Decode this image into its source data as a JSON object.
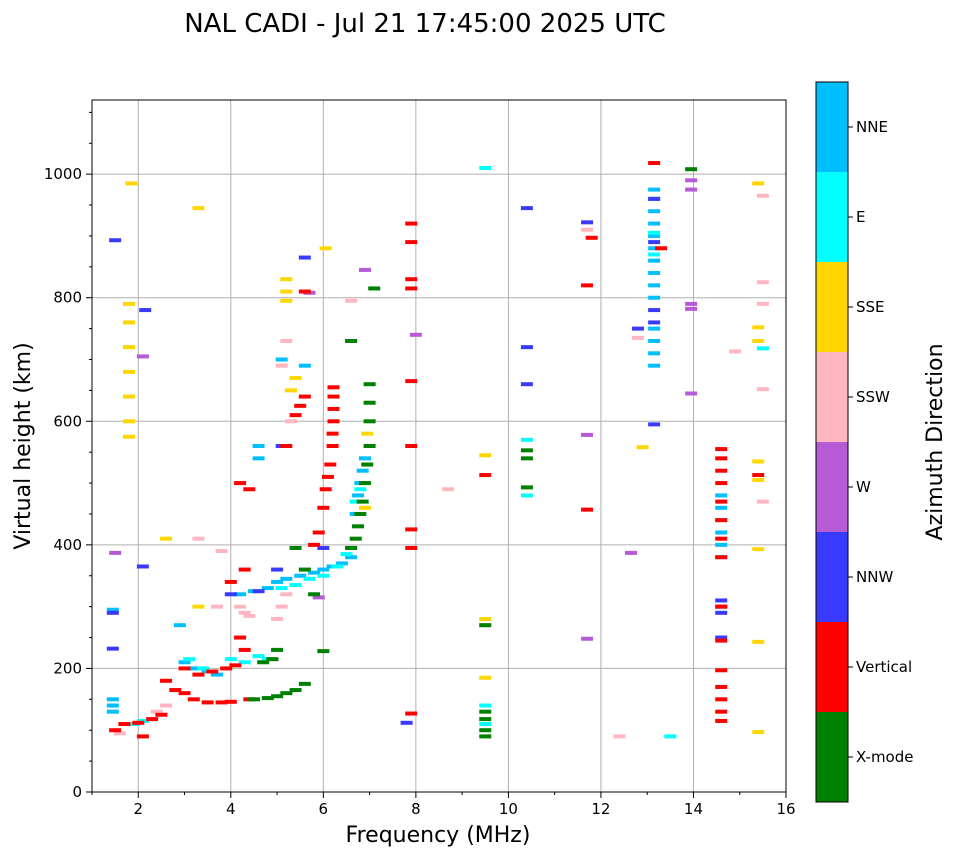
{
  "chart_data": {
    "type": "scatter",
    "title": "NAL CADI - Jul 21 17:45:00 2025 UTC",
    "xlabel": "Frequency (MHz)",
    "ylabel": "Virtual height (km)",
    "xlim": [
      1,
      16
    ],
    "ylim": [
      0,
      1120
    ],
    "xticks": [
      2,
      4,
      6,
      8,
      10,
      12,
      14,
      16
    ],
    "yticks": [
      0,
      200,
      400,
      600,
      800,
      1000
    ],
    "grid": true,
    "colorbar": {
      "label": "Azimuth Direction",
      "position": "right",
      "categories": [
        {
          "name": "X-mode",
          "color": "#008000"
        },
        {
          "name": "Vertical",
          "color": "#ff0000"
        },
        {
          "name": "NNW",
          "color": "#3a3aff"
        },
        {
          "name": "W",
          "color": "#b65ad6"
        },
        {
          "name": "SSW",
          "color": "#ffb6c1"
        },
        {
          "name": "SSE",
          "color": "#ffd700"
        },
        {
          "name": "E",
          "color": "#00ffff"
        },
        {
          "name": "NNE",
          "color": "#00bfff"
        }
      ]
    },
    "series": [
      {
        "name": "NNE",
        "points": [
          [
            1.45,
            150
          ],
          [
            1.45,
            140
          ],
          [
            1.45,
            130
          ],
          [
            1.45,
            295
          ],
          [
            2.9,
            270
          ],
          [
            3.0,
            210
          ],
          [
            3.2,
            200
          ],
          [
            3.5,
            195
          ],
          [
            3.7,
            190
          ],
          [
            4.2,
            320
          ],
          [
            4.5,
            325
          ],
          [
            4.8,
            330
          ],
          [
            5.0,
            340
          ],
          [
            5.2,
            345
          ],
          [
            5.5,
            350
          ],
          [
            5.8,
            355
          ],
          [
            6.0,
            360
          ],
          [
            6.2,
            365
          ],
          [
            6.4,
            370
          ],
          [
            6.6,
            380
          ],
          [
            6.7,
            450
          ],
          [
            6.75,
            480
          ],
          [
            6.8,
            500
          ],
          [
            6.85,
            520
          ],
          [
            6.9,
            540
          ],
          [
            4.6,
            560
          ],
          [
            4.6,
            540
          ],
          [
            5.1,
            700
          ],
          [
            5.6,
            690
          ],
          [
            13.15,
            975
          ],
          [
            13.15,
            960
          ],
          [
            13.15,
            940
          ],
          [
            13.15,
            920
          ],
          [
            13.15,
            900
          ],
          [
            13.15,
            880
          ],
          [
            13.15,
            860
          ],
          [
            13.15,
            840
          ],
          [
            13.15,
            820
          ],
          [
            13.15,
            800
          ],
          [
            13.15,
            750
          ],
          [
            13.15,
            730
          ],
          [
            13.15,
            710
          ],
          [
            13.15,
            690
          ],
          [
            14.6,
            480
          ],
          [
            14.6,
            460
          ],
          [
            14.6,
            440
          ],
          [
            14.6,
            420
          ],
          [
            14.6,
            400
          ],
          [
            14.6,
            380
          ]
        ]
      },
      {
        "name": "E",
        "points": [
          [
            1.9,
            110
          ],
          [
            2.1,
            115
          ],
          [
            3.1,
            215
          ],
          [
            3.4,
            200
          ],
          [
            3.6,
            195
          ],
          [
            4.0,
            215
          ],
          [
            4.3,
            210
          ],
          [
            4.6,
            220
          ],
          [
            4.8,
            215
          ],
          [
            5.1,
            330
          ],
          [
            5.4,
            335
          ],
          [
            5.7,
            345
          ],
          [
            6.0,
            350
          ],
          [
            6.3,
            365
          ],
          [
            6.5,
            385
          ],
          [
            6.6,
            395
          ],
          [
            6.7,
            470
          ],
          [
            6.8,
            490
          ],
          [
            9.5,
            1010
          ],
          [
            10.4,
            480
          ],
          [
            10.4,
            570
          ],
          [
            9.5,
            140
          ],
          [
            9.5,
            110
          ],
          [
            13.5,
            90
          ],
          [
            15.5,
            718
          ],
          [
            13.15,
            905
          ],
          [
            13.15,
            870
          ]
        ]
      },
      {
        "name": "SSE",
        "points": [
          [
            1.8,
            790
          ],
          [
            1.8,
            760
          ],
          [
            1.8,
            720
          ],
          [
            1.8,
            680
          ],
          [
            1.8,
            640
          ],
          [
            1.8,
            600
          ],
          [
            1.8,
            575
          ],
          [
            1.85,
            985
          ],
          [
            3.3,
            945
          ],
          [
            5.2,
            830
          ],
          [
            5.2,
            810
          ],
          [
            5.2,
            795
          ],
          [
            6.05,
            880
          ],
          [
            6.95,
            580
          ],
          [
            6.9,
            460
          ],
          [
            3.3,
            300
          ],
          [
            2.6,
            410
          ],
          [
            9.5,
            545
          ],
          [
            9.5,
            280
          ],
          [
            9.5,
            185
          ],
          [
            12.9,
            558
          ],
          [
            15.4,
            985
          ],
          [
            15.4,
            752
          ],
          [
            15.4,
            730
          ],
          [
            15.4,
            535
          ],
          [
            15.4,
            505
          ],
          [
            15.4,
            393
          ],
          [
            15.4,
            243
          ],
          [
            15.4,
            97
          ],
          [
            5.3,
            650
          ],
          [
            5.4,
            670
          ]
        ]
      },
      {
        "name": "SSW",
        "points": [
          [
            1.6,
            95
          ],
          [
            2.4,
            130
          ],
          [
            2.6,
            140
          ],
          [
            5.0,
            280
          ],
          [
            5.1,
            300
          ],
          [
            5.2,
            320
          ],
          [
            4.2,
            300
          ],
          [
            4.3,
            290
          ],
          [
            4.4,
            285
          ],
          [
            5.3,
            600
          ],
          [
            5.1,
            690
          ],
          [
            6.6,
            795
          ],
          [
            5.2,
            730
          ],
          [
            8.7,
            490
          ],
          [
            9.5,
            270
          ],
          [
            12.4,
            90
          ],
          [
            11.7,
            910
          ],
          [
            12.8,
            735
          ],
          [
            14.9,
            713
          ],
          [
            15.5,
            965
          ],
          [
            15.5,
            825
          ],
          [
            15.5,
            790
          ],
          [
            15.5,
            652
          ],
          [
            15.5,
            470
          ],
          [
            3.3,
            410
          ],
          [
            3.7,
            300
          ],
          [
            3.8,
            390
          ]
        ]
      },
      {
        "name": "W",
        "points": [
          [
            1.5,
            387
          ],
          [
            2.1,
            705
          ],
          [
            5.7,
            808
          ],
          [
            6.9,
            845
          ],
          [
            8.0,
            740
          ],
          [
            11.7,
            578
          ],
          [
            11.7,
            248
          ],
          [
            12.65,
            387
          ],
          [
            13.95,
            990
          ],
          [
            13.95,
            975
          ],
          [
            13.95,
            790
          ],
          [
            13.95,
            782
          ],
          [
            13.95,
            645
          ],
          [
            5.9,
            315
          ]
        ]
      },
      {
        "name": "NNW",
        "points": [
          [
            1.45,
            290
          ],
          [
            1.45,
            232
          ],
          [
            1.5,
            893
          ],
          [
            2.15,
            780
          ],
          [
            2.1,
            365
          ],
          [
            4.0,
            320
          ],
          [
            4.6,
            325
          ],
          [
            5.0,
            360
          ],
          [
            5.1,
            560
          ],
          [
            5.6,
            865
          ],
          [
            6.0,
            395
          ],
          [
            7.8,
            112
          ],
          [
            10.4,
            945
          ],
          [
            10.4,
            720
          ],
          [
            10.4,
            660
          ],
          [
            11.7,
            922
          ],
          [
            12.8,
            750
          ],
          [
            13.15,
            595
          ],
          [
            13.15,
            780
          ],
          [
            13.15,
            760
          ],
          [
            14.6,
            310
          ],
          [
            14.6,
            300
          ],
          [
            14.6,
            290
          ],
          [
            14.6,
            250
          ],
          [
            13.15,
            960
          ],
          [
            13.15,
            890
          ]
        ]
      },
      {
        "name": "Vertical",
        "points": [
          [
            1.5,
            100
          ],
          [
            1.7,
            110
          ],
          [
            2.0,
            112
          ],
          [
            2.3,
            118
          ],
          [
            2.5,
            125
          ],
          [
            2.6,
            180
          ],
          [
            2.8,
            165
          ],
          [
            3.0,
            160
          ],
          [
            3.2,
            150
          ],
          [
            3.5,
            145
          ],
          [
            3.8,
            145
          ],
          [
            4.0,
            146
          ],
          [
            4.4,
            150
          ],
          [
            3.0,
            200
          ],
          [
            3.3,
            190
          ],
          [
            3.6,
            195
          ],
          [
            3.9,
            200
          ],
          [
            4.1,
            205
          ],
          [
            4.2,
            250
          ],
          [
            4.3,
            230
          ],
          [
            4.3,
            360
          ],
          [
            4.0,
            340
          ],
          [
            4.2,
            500
          ],
          [
            4.4,
            490
          ],
          [
            5.2,
            560
          ],
          [
            5.4,
            610
          ],
          [
            5.5,
            625
          ],
          [
            5.6,
            640
          ],
          [
            5.8,
            400
          ],
          [
            5.9,
            420
          ],
          [
            6.0,
            460
          ],
          [
            6.05,
            490
          ],
          [
            6.1,
            510
          ],
          [
            6.15,
            530
          ],
          [
            6.2,
            560
          ],
          [
            6.2,
            580
          ],
          [
            6.22,
            600
          ],
          [
            6.22,
            620
          ],
          [
            6.22,
            640
          ],
          [
            6.22,
            655
          ],
          [
            5.6,
            810
          ],
          [
            7.9,
            920
          ],
          [
            7.9,
            890
          ],
          [
            7.9,
            830
          ],
          [
            7.9,
            815
          ],
          [
            7.9,
            665
          ],
          [
            7.9,
            560
          ],
          [
            7.9,
            425
          ],
          [
            7.9,
            395
          ],
          [
            7.9,
            127
          ],
          [
            9.5,
            513
          ],
          [
            11.7,
            457
          ],
          [
            11.7,
            820
          ],
          [
            11.8,
            897
          ],
          [
            13.3,
            880
          ],
          [
            13.15,
            1018
          ],
          [
            14.6,
            555
          ],
          [
            14.6,
            540
          ],
          [
            14.6,
            520
          ],
          [
            14.6,
            500
          ],
          [
            14.6,
            470
          ],
          [
            14.6,
            440
          ],
          [
            14.6,
            410
          ],
          [
            14.6,
            380
          ],
          [
            14.6,
            300
          ],
          [
            14.6,
            245
          ],
          [
            14.6,
            197
          ],
          [
            14.6,
            170
          ],
          [
            14.6,
            150
          ],
          [
            14.6,
            130
          ],
          [
            14.6,
            115
          ],
          [
            15.4,
            513
          ],
          [
            2.1,
            90
          ]
        ]
      },
      {
        "name": "X-mode",
        "points": [
          [
            4.5,
            150
          ],
          [
            4.8,
            152
          ],
          [
            5.0,
            155
          ],
          [
            5.2,
            160
          ],
          [
            5.4,
            165
          ],
          [
            5.6,
            175
          ],
          [
            4.7,
            210
          ],
          [
            4.9,
            215
          ],
          [
            5.0,
            230
          ],
          [
            5.4,
            395
          ],
          [
            5.6,
            360
          ],
          [
            6.0,
            228
          ],
          [
            6.6,
            395
          ],
          [
            6.7,
            410
          ],
          [
            6.75,
            430
          ],
          [
            6.8,
            450
          ],
          [
            6.85,
            470
          ],
          [
            6.9,
            500
          ],
          [
            6.95,
            530
          ],
          [
            7.0,
            560
          ],
          [
            7.0,
            600
          ],
          [
            7.0,
            630
          ],
          [
            7.0,
            660
          ],
          [
            7.1,
            815
          ],
          [
            10.4,
            553
          ],
          [
            10.4,
            540
          ],
          [
            10.4,
            493
          ],
          [
            9.5,
            270
          ],
          [
            9.5,
            130
          ],
          [
            9.5,
            118
          ],
          [
            9.5,
            100
          ],
          [
            9.5,
            90
          ],
          [
            13.95,
            1008
          ],
          [
            6.6,
            730
          ],
          [
            5.8,
            320
          ]
        ]
      }
    ]
  }
}
